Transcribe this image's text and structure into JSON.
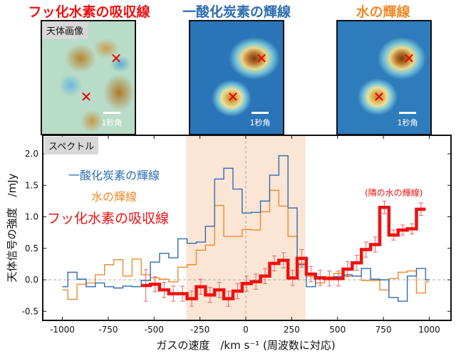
{
  "titles": {
    "hf": "フッ化水素の吸収線",
    "co": "一酸化炭素の輝線",
    "water": "水の輝線"
  },
  "image_tag": "天体画像",
  "scale_label": "1秒角",
  "spectrum_tag": "スペクトル",
  "colors": {
    "hf": "#ee1111",
    "co": "#2e6db0",
    "water": "#f08a2a",
    "shade": "#fbe5d4"
  },
  "chart_data": {
    "type": "line",
    "style": "step",
    "xlabel": "ガスの速度　/km s⁻¹ (周波数に対応)",
    "ylabel": "天体信号の強度　/mJy",
    "xlim": [
      -1050,
      1050
    ],
    "ylim": [
      -0.55,
      2.25
    ],
    "xticks": [
      -1000,
      -750,
      -500,
      -250,
      0,
      250,
      500,
      750,
      1000
    ],
    "yticks": [
      -0.5,
      0.0,
      0.5,
      1.0,
      1.5,
      2.0
    ],
    "ytick_labels": [
      "-0.5",
      "0.0",
      "0.5",
      "1.0",
      "1.5",
      "2.0"
    ],
    "shaded_x_range": [
      -325,
      325
    ],
    "reference_lines": {
      "x": 0,
      "y": 0
    },
    "bin_width": 50,
    "series": [
      {
        "name": "一酸化炭素の輝線",
        "key": "co",
        "x_start": -995,
        "values": [
          -0.11,
          0.12,
          0.01,
          -0.11,
          -0.05,
          -0.11,
          -0.13,
          -0.1,
          -0.11,
          -0.01,
          0.28,
          0.42,
          0.35,
          0.65,
          0.58,
          0.6,
          0.85,
          1.6,
          1.77,
          1.44,
          1.06,
          1.07,
          1.25,
          1.66,
          1.97,
          1.14,
          0.24,
          -0.11,
          0.05,
          0.01,
          0.05,
          0.08,
          0.06,
          0.18,
          0.01,
          0.0,
          -0.28,
          -0.34,
          0.06,
          0.18,
          0.0
        ]
      },
      {
        "name": "水の輝線",
        "key": "water",
        "x_start": -995,
        "values": [
          -0.16,
          -0.31,
          -0.07,
          -0.05,
          0.08,
          0.24,
          0.32,
          0.06,
          0.33,
          0.08,
          0.03,
          0.01,
          -0.03,
          0.2,
          0.24,
          0.47,
          0.55,
          1.18,
          0.69,
          0.69,
          0.8,
          0.79,
          1.08,
          1.42,
          1.17,
          0.69,
          0.26,
          0.05,
          -0.05,
          0.05,
          0.1,
          0.06,
          0.06,
          -0.01,
          -0.01,
          -0.16,
          0.02,
          0.12,
          0.14,
          -0.21,
          -0.03
        ]
      },
      {
        "name": "フッ化水素の吸収線",
        "key": "hf",
        "x_start": -545,
        "values": [
          -0.09,
          -0.07,
          -0.16,
          -0.22,
          -0.22,
          -0.3,
          -0.11,
          -0.24,
          -0.16,
          -0.3,
          -0.18,
          -0.06,
          -0.03,
          0.06,
          0.26,
          0.31,
          0.03,
          0.34,
          0.09,
          0.03,
          0.02,
          0.02,
          0.17,
          0.27,
          0.48,
          0.56,
          1.15,
          0.71,
          0.79,
          0.81,
          1.12
        ],
        "errors": [
          0.25,
          0.12,
          0.12,
          0.12,
          0.12,
          0.12,
          0.12,
          0.12,
          0.12,
          0.12,
          0.12,
          0.12,
          0.12,
          0.12,
          0.12,
          0.12,
          0.12,
          0.14,
          0.12,
          0.12,
          0.12,
          0.12,
          0.12,
          0.12,
          0.12,
          0.12,
          0.1,
          0.08,
          0.08,
          0.08,
          0.1
        ]
      }
    ],
    "annotation": "(隣の水の輝線)"
  }
}
